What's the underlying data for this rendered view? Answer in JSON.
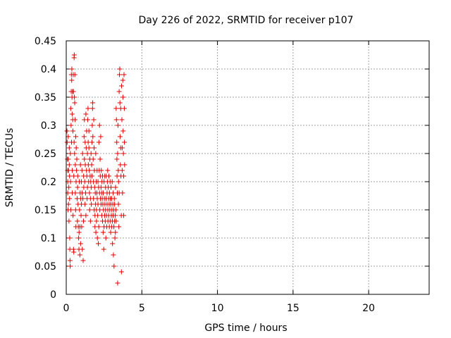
{
  "chart_data": {
    "type": "scatter",
    "title": "Day 226 of 2022, SRMTID for receiver p107",
    "xlabel": "GPS time / hours",
    "ylabel": "SRMTID / TECUs",
    "xlim": [
      0,
      24
    ],
    "ylim": [
      0,
      0.45
    ],
    "xticks": [
      0,
      5,
      10,
      15,
      20
    ],
    "xtick_labels": [
      "0",
      "5",
      "10",
      "15",
      "20"
    ],
    "yticks": [
      0,
      0.05,
      0.1,
      0.15,
      0.2,
      0.25,
      0.3,
      0.35,
      0.4,
      0.45
    ],
    "ytick_labels": [
      "0",
      "0.05",
      "0.1",
      "0.15",
      "0.2",
      "0.25",
      "0.3",
      "0.35",
      "0.4",
      "0.45"
    ],
    "grid": true,
    "marker": "+",
    "series": [
      {
        "color": "#e00000",
        "points": [
          [
            0.05,
            0.29
          ],
          [
            0.06,
            0.27
          ],
          [
            0.08,
            0.24
          ],
          [
            0.09,
            0.22
          ],
          [
            0.1,
            0.2
          ],
          [
            0.1,
            0.18
          ],
          [
            0.12,
            0.15
          ],
          [
            0.13,
            0.28
          ],
          [
            0.14,
            0.24
          ],
          [
            0.15,
            0.16
          ],
          [
            0.16,
            0.22
          ],
          [
            0.17,
            0.19
          ],
          [
            0.18,
            0.13
          ],
          [
            0.2,
            0.26
          ],
          [
            0.2,
            0.23
          ],
          [
            0.22,
            0.21
          ],
          [
            0.22,
            0.17
          ],
          [
            0.23,
            0.1
          ],
          [
            0.24,
            0.08
          ],
          [
            0.25,
            0.06
          ],
          [
            0.26,
            0.05
          ],
          [
            0.27,
            0.25
          ],
          [
            0.28,
            0.2
          ],
          [
            0.3,
            0.33
          ],
          [
            0.3,
            0.15
          ],
          [
            0.32,
            0.3
          ],
          [
            0.33,
            0.36
          ],
          [
            0.34,
            0.39
          ],
          [
            0.35,
            0.27
          ],
          [
            0.36,
            0.38
          ],
          [
            0.37,
            0.4
          ],
          [
            0.38,
            0.35
          ],
          [
            0.39,
            0.32
          ],
          [
            0.4,
            0.22
          ],
          [
            0.4,
            0.18
          ],
          [
            0.42,
            0.36
          ],
          [
            0.43,
            0.31
          ],
          [
            0.44,
            0.29
          ],
          [
            0.45,
            0.14
          ],
          [
            0.46,
            0.39
          ],
          [
            0.47,
            0.36
          ],
          [
            0.48,
            0.08
          ],
          [
            0.5,
            0.075
          ],
          [
            0.5,
            0.21
          ],
          [
            0.52,
            0.27
          ],
          [
            0.52,
            0.42
          ],
          [
            0.53,
            0.425
          ],
          [
            0.54,
            0.35
          ],
          [
            0.55,
            0.25
          ],
          [
            0.56,
            0.34
          ],
          [
            0.57,
            0.39
          ],
          [
            0.58,
            0.31
          ],
          [
            0.6,
            0.23
          ],
          [
            0.6,
            0.18
          ],
          [
            0.62,
            0.15
          ],
          [
            0.63,
            0.28
          ],
          [
            0.64,
            0.12
          ],
          [
            0.65,
            0.2
          ],
          [
            0.66,
            0.26
          ],
          [
            0.68,
            0.22
          ],
          [
            0.7,
            0.24
          ],
          [
            0.72,
            0.17
          ],
          [
            0.74,
            0.13
          ],
          [
            0.75,
            0.19
          ],
          [
            0.76,
            0.21
          ],
          [
            0.78,
            0.16
          ],
          [
            0.8,
            0.12
          ],
          [
            0.82,
            0.1
          ],
          [
            0.84,
            0.08
          ],
          [
            0.85,
            0.11
          ],
          [
            0.86,
            0.2
          ],
          [
            0.88,
            0.15
          ],
          [
            0.9,
            0.07
          ],
          [
            0.9,
            0.12
          ],
          [
            0.92,
            0.18
          ],
          [
            0.94,
            0.23
          ],
          [
            0.95,
            0.09
          ],
          [
            0.96,
            0.17
          ],
          [
            0.98,
            0.14
          ],
          [
            1.0,
            0.2
          ],
          [
            1.0,
            0.16
          ],
          [
            1.02,
            0.12
          ],
          [
            1.04,
            0.22
          ],
          [
            1.05,
            0.18
          ],
          [
            1.06,
            0.08
          ],
          [
            1.08,
            0.25
          ],
          [
            1.1,
            0.17
          ],
          [
            1.12,
            0.06
          ],
          [
            1.14,
            0.13
          ],
          [
            1.15,
            0.21
          ],
          [
            1.16,
            0.19
          ],
          [
            1.18,
            0.28
          ],
          [
            1.2,
            0.31
          ],
          [
            1.2,
            0.24
          ],
          [
            1.22,
            0.2
          ],
          [
            1.24,
            0.16
          ],
          [
            1.25,
            0.27
          ],
          [
            1.26,
            0.23
          ],
          [
            1.28,
            0.18
          ],
          [
            1.3,
            0.32
          ],
          [
            1.3,
            0.14
          ],
          [
            1.32,
            0.26
          ],
          [
            1.34,
            0.22
          ],
          [
            1.35,
            0.29
          ],
          [
            1.36,
            0.21
          ],
          [
            1.38,
            0.17
          ],
          [
            1.4,
            0.25
          ],
          [
            1.4,
            0.19
          ],
          [
            1.42,
            0.31
          ],
          [
            1.44,
            0.33
          ],
          [
            1.45,
            0.27
          ],
          [
            1.46,
            0.23
          ],
          [
            1.48,
            0.2
          ],
          [
            1.5,
            0.29
          ],
          [
            1.5,
            0.26
          ],
          [
            1.52,
            0.22
          ],
          [
            1.54,
            0.18
          ],
          [
            1.55,
            0.15
          ],
          [
            1.56,
            0.24
          ],
          [
            1.58,
            0.21
          ],
          [
            1.6,
            0.17
          ],
          [
            1.6,
            0.13
          ],
          [
            1.62,
            0.2
          ],
          [
            1.64,
            0.25
          ],
          [
            1.65,
            0.19
          ],
          [
            1.66,
            0.16
          ],
          [
            1.68,
            0.23
          ],
          [
            1.7,
            0.21
          ],
          [
            1.7,
            0.27
          ],
          [
            1.72,
            0.3
          ],
          [
            1.74,
            0.33
          ],
          [
            1.75,
            0.34
          ],
          [
            1.76,
            0.28
          ],
          [
            1.78,
            0.24
          ],
          [
            1.8,
            0.2
          ],
          [
            1.8,
            0.17
          ],
          [
            1.82,
            0.31
          ],
          [
            1.84,
            0.26
          ],
          [
            1.85,
            0.15
          ],
          [
            1.86,
            0.22
          ],
          [
            1.88,
            0.19
          ],
          [
            1.9,
            0.14
          ],
          [
            1.9,
            0.12
          ],
          [
            1.92,
            0.18
          ],
          [
            1.94,
            0.16
          ],
          [
            1.95,
            0.25
          ],
          [
            1.96,
            0.11
          ],
          [
            1.98,
            0.2
          ],
          [
            2.0,
            0.15
          ],
          [
            2.0,
            0.13
          ],
          [
            2.02,
            0.18
          ],
          [
            2.04,
            0.22
          ],
          [
            2.05,
            0.17
          ],
          [
            2.06,
            0.1
          ],
          [
            2.08,
            0.14
          ],
          [
            2.1,
            0.2
          ],
          [
            2.1,
            0.16
          ],
          [
            2.12,
            0.09
          ],
          [
            2.14,
            0.19
          ],
          [
            2.15,
            0.12
          ],
          [
            2.16,
            0.27
          ],
          [
            2.18,
            0.22
          ],
          [
            2.2,
            0.3
          ],
          [
            2.2,
            0.18
          ],
          [
            2.22,
            0.15
          ],
          [
            2.24,
            0.24
          ],
          [
            2.25,
            0.21
          ],
          [
            2.26,
            0.17
          ],
          [
            2.28,
            0.28
          ],
          [
            2.3,
            0.19
          ],
          [
            2.3,
            0.16
          ],
          [
            2.32,
            0.22
          ],
          [
            2.34,
            0.18
          ],
          [
            2.35,
            0.14
          ],
          [
            2.36,
            0.2
          ],
          [
            2.38,
            0.17
          ],
          [
            2.4,
            0.21
          ],
          [
            2.4,
            0.13
          ],
          [
            2.42,
            0.16
          ],
          [
            2.44,
            0.11
          ],
          [
            2.45,
            0.18
          ],
          [
            2.46,
            0.15
          ],
          [
            2.48,
            0.08
          ],
          [
            2.5,
            0.12
          ],
          [
            2.5,
            0.2
          ],
          [
            2.52,
            0.17
          ],
          [
            2.54,
            0.14
          ],
          [
            2.55,
            0.21
          ],
          [
            2.56,
            0.16
          ],
          [
            2.58,
            0.13
          ],
          [
            2.6,
            0.19
          ],
          [
            2.6,
            0.15
          ],
          [
            2.62,
            0.1
          ],
          [
            2.64,
            0.17
          ],
          [
            2.65,
            0.21
          ],
          [
            2.66,
            0.14
          ],
          [
            2.68,
            0.12
          ],
          [
            2.7,
            0.18
          ],
          [
            2.7,
            0.16
          ],
          [
            2.72,
            0.2
          ],
          [
            2.74,
            0.22
          ],
          [
            2.75,
            0.15
          ],
          [
            2.76,
            0.13
          ],
          [
            2.78,
            0.19
          ],
          [
            2.8,
            0.17
          ],
          [
            2.8,
            0.14
          ],
          [
            2.82,
            0.21
          ],
          [
            2.84,
            0.16
          ],
          [
            2.85,
            0.12
          ],
          [
            2.86,
            0.18
          ],
          [
            2.88,
            0.15
          ],
          [
            2.9,
            0.2
          ],
          [
            2.9,
            0.13
          ],
          [
            2.92,
            0.17
          ],
          [
            2.94,
            0.11
          ],
          [
            2.95,
            0.16
          ],
          [
            2.96,
            0.19
          ],
          [
            2.98,
            0.14
          ],
          [
            3.0,
            0.12
          ],
          [
            3.0,
            0.17
          ],
          [
            3.02,
            0.15
          ],
          [
            3.04,
            0.2
          ],
          [
            3.05,
            0.13
          ],
          [
            3.06,
            0.09
          ],
          [
            3.08,
            0.16
          ],
          [
            3.1,
            0.14
          ],
          [
            3.1,
            0.18
          ],
          [
            3.12,
            0.07
          ],
          [
            3.14,
            0.15
          ],
          [
            3.15,
            0.12
          ],
          [
            3.16,
            0.05
          ],
          [
            3.18,
            0.17
          ],
          [
            3.2,
            0.13
          ],
          [
            3.2,
            0.16
          ],
          [
            3.22,
            0.1
          ],
          [
            3.24,
            0.14
          ],
          [
            3.25,
            0.11
          ],
          [
            3.26,
            0.19
          ],
          [
            3.28,
            0.15
          ],
          [
            3.3,
            0.13
          ],
          [
            3.3,
            0.33
          ],
          [
            3.32,
            0.31
          ],
          [
            3.34,
            0.27
          ],
          [
            3.35,
            0.24
          ],
          [
            3.36,
            0.21
          ],
          [
            3.38,
            0.18
          ],
          [
            3.4,
            0.25
          ],
          [
            3.4,
            0.02
          ],
          [
            3.42,
            0.3
          ],
          [
            3.44,
            0.22
          ],
          [
            3.45,
            0.16
          ],
          [
            3.46,
            0.2
          ],
          [
            3.48,
            0.12
          ],
          [
            3.5,
            0.18
          ],
          [
            3.5,
            0.36
          ],
          [
            3.52,
            0.39
          ],
          [
            3.54,
            0.4
          ],
          [
            3.55,
            0.34
          ],
          [
            3.56,
            0.28
          ],
          [
            3.58,
            0.23
          ],
          [
            3.6,
            0.33
          ],
          [
            3.6,
            0.26
          ],
          [
            3.62,
            0.21
          ],
          [
            3.64,
            0.14
          ],
          [
            3.65,
            0.04
          ],
          [
            3.66,
            0.37
          ],
          [
            3.68,
            0.31
          ],
          [
            3.7,
            0.26
          ],
          [
            3.7,
            0.22
          ],
          [
            3.72,
            0.18
          ],
          [
            3.74,
            0.38
          ],
          [
            3.75,
            0.35
          ],
          [
            3.76,
            0.29
          ],
          [
            3.78,
            0.25
          ],
          [
            3.8,
            0.21
          ],
          [
            3.8,
            0.14
          ],
          [
            3.82,
            0.39
          ],
          [
            3.84,
            0.33
          ],
          [
            3.85,
            0.27
          ],
          [
            3.86,
            0.23
          ]
        ]
      }
    ]
  }
}
